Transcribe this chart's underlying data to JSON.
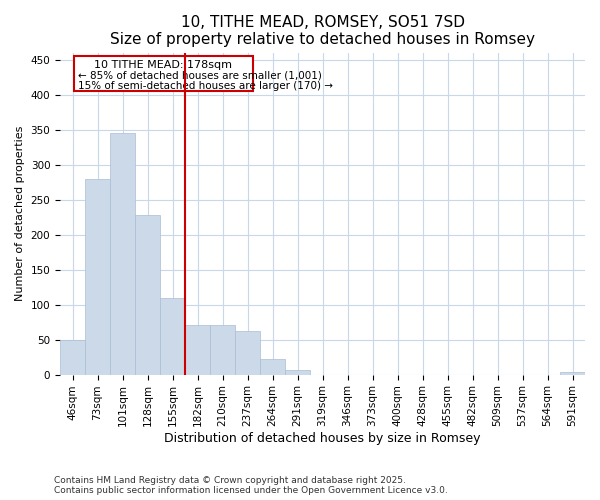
{
  "title": "10, TITHE MEAD, ROMSEY, SO51 7SD",
  "subtitle": "Size of property relative to detached houses in Romsey",
  "xlabel": "Distribution of detached houses by size in Romsey",
  "ylabel": "Number of detached properties",
  "categories": [
    "46sqm",
    "73sqm",
    "101sqm",
    "128sqm",
    "155sqm",
    "182sqm",
    "210sqm",
    "237sqm",
    "264sqm",
    "291sqm",
    "319sqm",
    "346sqm",
    "373sqm",
    "400sqm",
    "428sqm",
    "455sqm",
    "482sqm",
    "509sqm",
    "537sqm",
    "564sqm",
    "591sqm"
  ],
  "values": [
    50,
    280,
    345,
    228,
    110,
    71,
    71,
    63,
    22,
    6,
    0,
    0,
    0,
    0,
    0,
    0,
    0,
    0,
    0,
    0,
    3
  ],
  "bar_color": "#ccd9e8",
  "bar_edge_color": "#aabdd4",
  "vline_color": "#cc0000",
  "annotation_title": "10 TITHE MEAD: 178sqm",
  "annotation_line1": "← 85% of detached houses are smaller (1,001)",
  "annotation_line2": "15% of semi-detached houses are larger (170) →",
  "annotation_box_color": "#cc0000",
  "annotation_bg": "#ffffff",
  "ylim": [
    0,
    460
  ],
  "yticks": [
    0,
    50,
    100,
    150,
    200,
    250,
    300,
    350,
    400,
    450
  ],
  "bg_color": "#ffffff",
  "plot_bg_color": "#ffffff",
  "grid_color": "#c8d8e8",
  "footer1": "Contains HM Land Registry data © Crown copyright and database right 2025.",
  "footer2": "Contains public sector information licensed under the Open Government Licence v3.0.",
  "title_fontsize": 11,
  "subtitle_fontsize": 9.5,
  "xlabel_fontsize": 9,
  "ylabel_fontsize": 8,
  "tick_fontsize": 7.5,
  "annotation_fontsize": 8,
  "footer_fontsize": 6.5
}
